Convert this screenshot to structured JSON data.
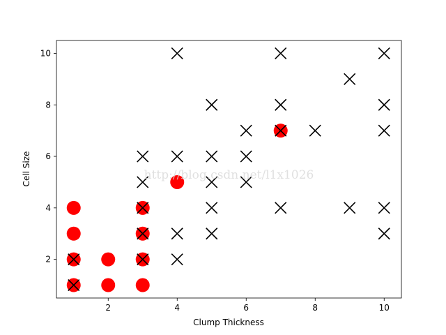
{
  "chart_data": {
    "type": "scatter",
    "x_label": "Clump Thickness",
    "y_label": "Cell Size",
    "watermark": "http://blog.csdn.net/l1x1026",
    "xlim": [
      0.5,
      10.5
    ],
    "ylim": [
      0.5,
      10.5
    ],
    "xticks": [
      2,
      4,
      6,
      8,
      10
    ],
    "yticks": [
      2,
      4,
      6,
      8,
      10
    ],
    "series": [
      {
        "color": "#ff0000",
        "marker": "o",
        "x": [
          1,
          1,
          1,
          1,
          2,
          2,
          3,
          3,
          3,
          3,
          4,
          7
        ],
        "values": [
          1,
          2,
          3,
          4,
          1,
          2,
          1,
          2,
          3,
          4,
          5,
          7
        ]
      },
      {
        "color": "#000000",
        "marker": "x",
        "x": [
          1,
          1,
          3,
          3,
          3,
          3,
          3,
          4,
          4,
          4,
          4,
          5,
          5,
          5,
          5,
          5,
          6,
          6,
          6,
          7,
          7,
          7,
          7,
          8,
          9,
          9,
          10,
          10,
          10,
          10,
          10
        ],
        "values": [
          1,
          2,
          2,
          3,
          4,
          5,
          6,
          2,
          3,
          6,
          10,
          3,
          4,
          5,
          6,
          8,
          5,
          6,
          7,
          4,
          7,
          8,
          10,
          7,
          4,
          9,
          3,
          4,
          7,
          8,
          10
        ]
      }
    ]
  }
}
